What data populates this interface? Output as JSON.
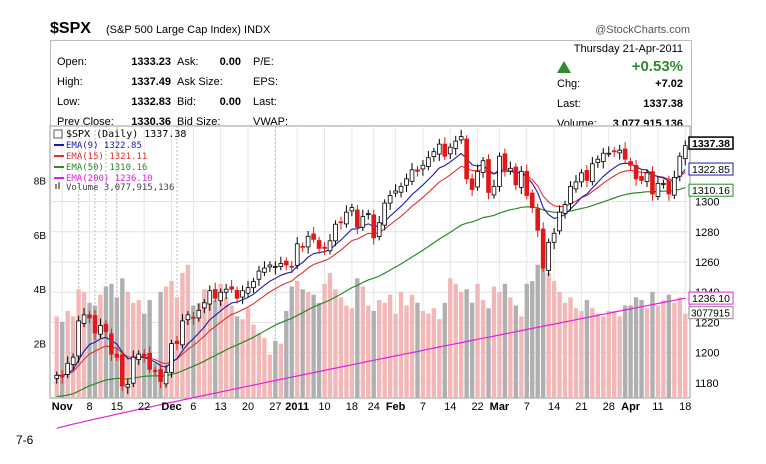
{
  "header": {
    "symbol": "$SPX",
    "description": "(S&P 500 Large Cap Index)",
    "exchange": "INDX",
    "brand": "@StockCharts.com"
  },
  "quote": {
    "open_label": "Open:",
    "open": "1333.23",
    "high_label": "High:",
    "high": "1337.49",
    "low_label": "Low:",
    "low": "1332.83",
    "prev_close_label": "Prev Close:",
    "prev_close": "1330.36",
    "ask_label": "Ask:",
    "ask": "0.00",
    "ask_size_label": "Ask Size:",
    "bid_label": "Bid:",
    "bid": "0.00",
    "bid_size_label": "Bid Size:",
    "pe_label": "P/E:",
    "eps_label": "EPS:",
    "last_label": "Last:",
    "vwap_label": "VWAP:",
    "date": "Thursday  21-Apr-2011",
    "change_pct": "+0.53%",
    "chg_label": "Chg:",
    "chg": "+7.02",
    "last2_label": "Last:",
    "last2": "1337.38",
    "volume_label": "Volume:",
    "volume": "3,077,915,136",
    "up_color": "#2e8b2e"
  },
  "legend": {
    "main": "$SPX (Daily) 1337.38",
    "ema9": "EMA(9) 1322.85",
    "ema15": "EMA(15) 1321.11",
    "ema50": "EMA(50) 1310.16",
    "ema200": "EMA(200) 1236.10",
    "volume": "Volume 3,077,915,136"
  },
  "colors": {
    "ema9": "#1a1aa8",
    "ema15": "#e03030",
    "ema50": "#2a8a2a",
    "ema200": "#e020e0",
    "up_vol": "#f2b8b8",
    "down_vol": "#b0b0b0",
    "down_candle": "#e01818"
  },
  "chart_data": {
    "type": "candlestick",
    "title": "$SPX (Daily) 1337.38",
    "y_axis_right": [
      1180,
      1200,
      1220,
      1240,
      1260,
      1280,
      1300
    ],
    "y_axis_left_volume": [
      "2B",
      "4B",
      "6B",
      "8B"
    ],
    "ylim": [
      1170,
      1350
    ],
    "volume_lim": [
      0,
      10
    ],
    "price_flags": [
      "1337.38",
      "1322.85",
      "1310.16",
      "1236.10"
    ],
    "volume_flag": "3077915",
    "x_ticks": [
      "Nov",
      "8",
      "15",
      "22",
      "Dec",
      "6",
      "13",
      "20",
      "27",
      "2011",
      "10",
      "18",
      "24",
      "Feb",
      "7",
      "14",
      "22",
      "Mar",
      "7",
      "14",
      "21",
      "28",
      "Apr",
      "11",
      "18"
    ],
    "x_tick_index": [
      1,
      6,
      11,
      16,
      21,
      25,
      30,
      35,
      40,
      44,
      49,
      54,
      58,
      62,
      67,
      72,
      77,
      81,
      86,
      91,
      96,
      101,
      105,
      110,
      115
    ],
    "close": [
      1185,
      1184,
      1193,
      1197,
      1221,
      1225,
      1223,
      1213,
      1218,
      1214,
      1199,
      1197,
      1178,
      1179,
      1197,
      1199,
      1198,
      1189,
      1188,
      1181,
      1187,
      1206,
      1206,
      1221,
      1225,
      1223,
      1228,
      1233,
      1241,
      1236,
      1240,
      1242,
      1242,
      1236,
      1241,
      1243,
      1247,
      1254,
      1256,
      1258,
      1257,
      1259,
      1258,
      1257,
      1272,
      1270,
      1277,
      1275,
      1269,
      1269,
      1274,
      1285,
      1286,
      1293,
      1296,
      1283,
      1290,
      1292,
      1276,
      1286,
      1299,
      1304,
      1307,
      1310,
      1315,
      1321,
      1320,
      1324,
      1329,
      1333,
      1338,
      1330,
      1336,
      1340,
      1343,
      1315,
      1308,
      1320,
      1327,
      1306,
      1310,
      1330,
      1321,
      1322,
      1311,
      1320,
      1304,
      1296,
      1281,
      1256,
      1273,
      1279,
      1293,
      1298,
      1310,
      1313,
      1319,
      1314,
      1325,
      1328,
      1332,
      1332,
      1333,
      1334,
      1328,
      1324,
      1315,
      1314,
      1319,
      1305,
      1312,
      1312,
      1305,
      1316,
      1330,
      1337
    ],
    "volume_billions": [
      3.0,
      2.8,
      3.2,
      3.0,
      4.0,
      3.9,
      3.5,
      3.4,
      3.8,
      4.1,
      4.2,
      3.7,
      4.4,
      3.9,
      3.5,
      3.6,
      3.1,
      3.6,
      1.3,
      3.9,
      4.1,
      4.3,
      3.7,
      4.6,
      4.9,
      3.4,
      3.5,
      4.0,
      3.9,
      3.6,
      4.2,
      3.7,
      3.4,
      3.0,
      2.9,
      3.3,
      2.7,
      2.4,
      2.2,
      1.6,
      2.1,
      2.0,
      3.2,
      4.1,
      4.3,
      4.0,
      3.9,
      3.8,
      3.5,
      4.2,
      4.6,
      4.0,
      3.7,
      3.4,
      3.3,
      4.4,
      4.1,
      3.4,
      3.2,
      3.6,
      3.5,
      3.8,
      3.1,
      3.9,
      3.4,
      3.8,
      3.5,
      3.2,
      3.1,
      3.3,
      2.9,
      3.5,
      4.4,
      4.2,
      3.9,
      4.0,
      3.5,
      4.2,
      3.6,
      3.3,
      4.1,
      3.9,
      4.2,
      3.7,
      3.4,
      3.0,
      4.2,
      4.3,
      4.9,
      5.3,
      4.6,
      4.3,
      3.9,
      3.5,
      3.7,
      3.3,
      3.2,
      3.6,
      3.3,
      3.1,
      3.0,
      3.2,
      3.2,
      3.0,
      3.4,
      3.4,
      3.7,
      3.6,
      3.3,
      3.9,
      3.4,
      3.6,
      3.8,
      3.5,
      3.7,
      3.1
    ],
    "series": [
      {
        "name": "EMA(9) 1322.85",
        "last": 1322.85
      },
      {
        "name": "EMA(15) 1321.11",
        "last": 1321.11
      },
      {
        "name": "EMA(50) 1310.16",
        "last": 1310.16
      },
      {
        "name": "EMA(200) 1236.10",
        "last": 1236.1
      }
    ],
    "ema200_start": 1150,
    "ema200_end": 1236.1,
    "grid": true
  },
  "caption": "7-6"
}
